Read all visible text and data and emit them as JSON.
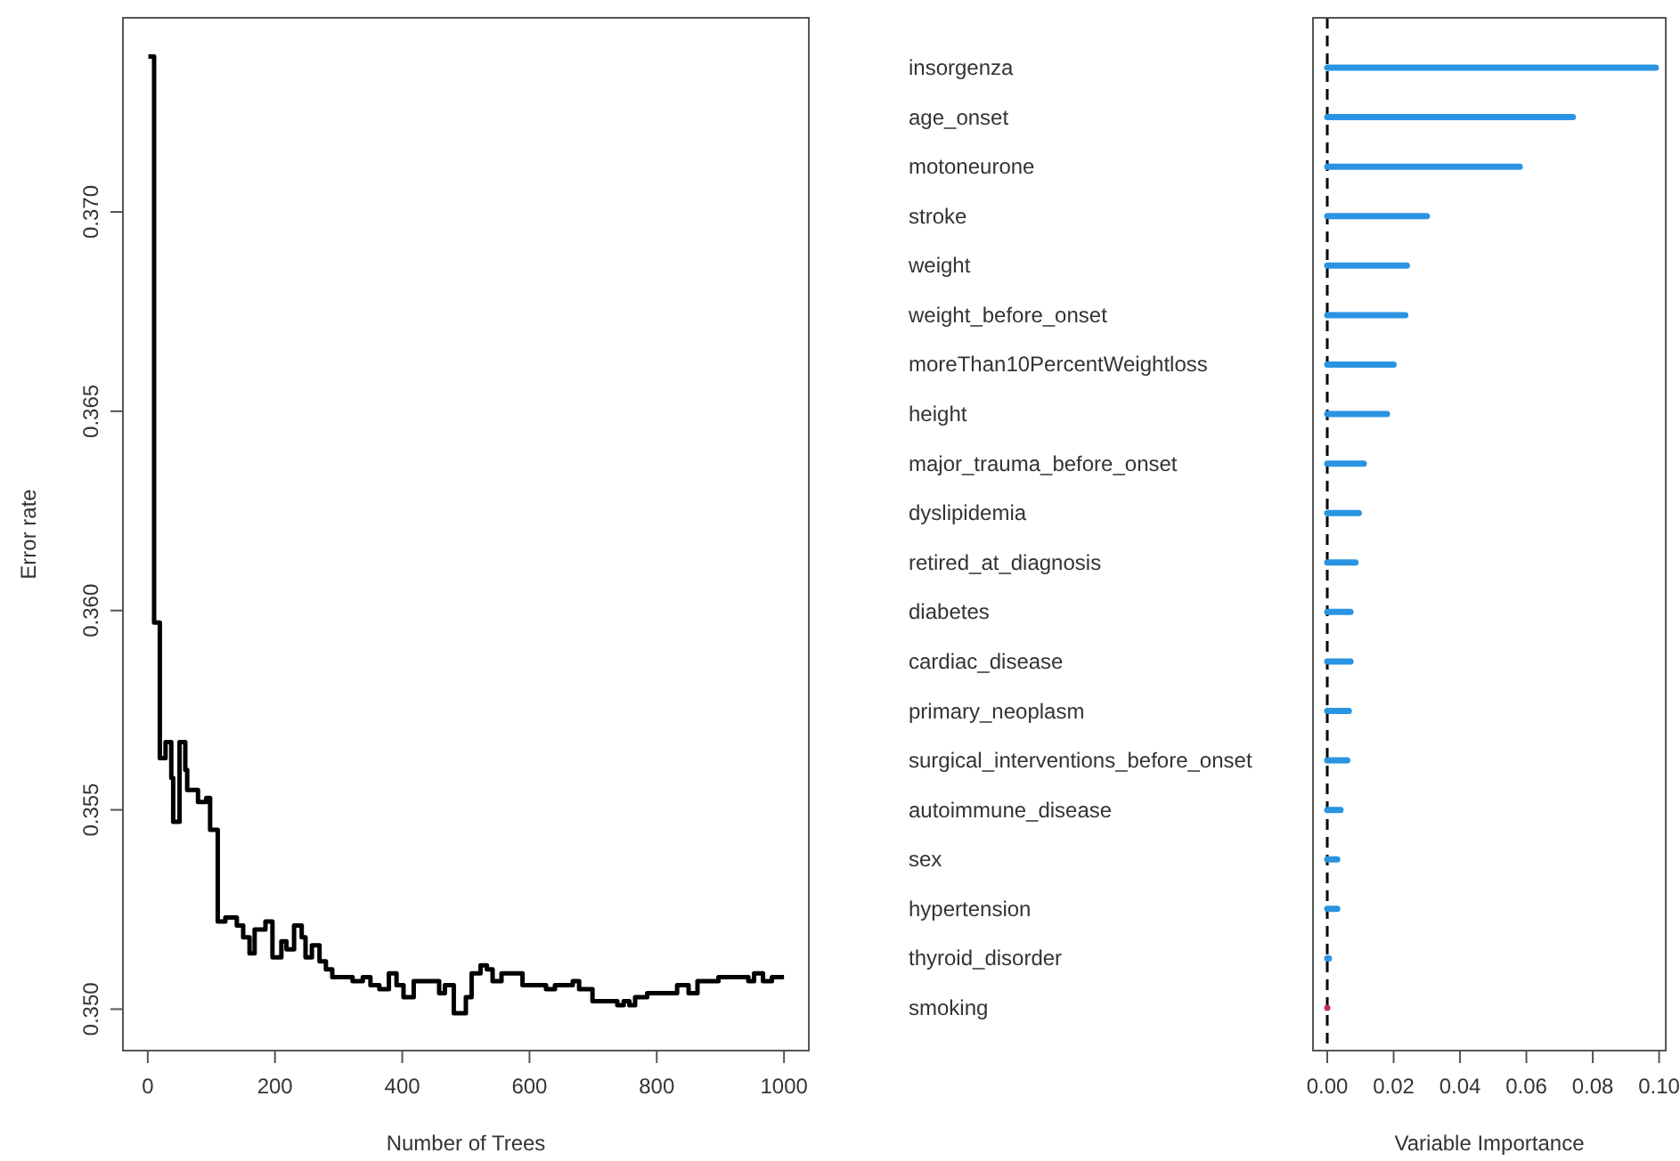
{
  "chart_data": [
    {
      "type": "step",
      "xlabel": "Number of Trees",
      "ylabel": "Error rate",
      "xlim": [
        -39,
        1039
      ],
      "ylim": [
        0.34896,
        0.37487
      ],
      "xticks": [
        0,
        200,
        400,
        600,
        800,
        1000
      ],
      "yticks": [
        {
          "value": 0.35,
          "label": "0.350"
        },
        {
          "value": 0.355,
          "label": "0.355"
        },
        {
          "value": 0.36,
          "label": "0.360"
        },
        {
          "value": 0.365,
          "label": "0.365"
        },
        {
          "value": 0.37,
          "label": "0.370"
        }
      ],
      "grid": false,
      "series": [
        {
          "color": "#000000",
          "x": [
            1,
            10,
            19,
            28,
            37,
            40,
            50,
            59,
            62,
            79,
            92,
            98,
            110,
            122,
            140,
            150,
            160,
            168,
            185,
            196,
            210,
            218,
            230,
            242,
            248,
            258,
            270,
            280,
            290,
            322,
            338,
            350,
            364,
            379,
            391,
            402,
            418,
            439,
            458,
            467,
            481,
            500,
            509,
            523,
            533,
            542,
            556,
            589,
            626,
            640,
            668,
            678,
            699,
            738,
            748,
            757,
            766,
            785,
            804,
            832,
            850,
            864,
            897,
            925,
            944,
            953,
            967,
            981,
            1000
          ],
          "values": [
            0.3739,
            0.3597,
            0.3563,
            0.3567,
            0.3558,
            0.3547,
            0.3567,
            0.356,
            0.3555,
            0.3552,
            0.3553,
            0.3545,
            0.3522,
            0.3523,
            0.3521,
            0.3518,
            0.3514,
            0.352,
            0.3522,
            0.3513,
            0.3517,
            0.3515,
            0.3521,
            0.3518,
            0.3513,
            0.3516,
            0.3512,
            0.351,
            0.3508,
            0.3507,
            0.3508,
            0.3506,
            0.3505,
            0.3509,
            0.3506,
            0.3503,
            0.3507,
            0.3507,
            0.3504,
            0.3506,
            0.3499,
            0.3503,
            0.3509,
            0.3511,
            0.351,
            0.3507,
            0.3509,
            0.3506,
            0.3505,
            0.3506,
            0.3507,
            0.3505,
            0.3502,
            0.3501,
            0.3502,
            0.3501,
            0.3503,
            0.3504,
            0.3504,
            0.3506,
            0.3504,
            0.3507,
            0.3508,
            0.3508,
            0.3507,
            0.3509,
            0.3507,
            0.3508,
            0.3508
          ]
        }
      ]
    },
    {
      "type": "bar",
      "orientation": "horizontal",
      "xlabel": "Variable Importance",
      "xlim": [
        -0.0043,
        0.102
      ],
      "xticks": [
        {
          "value": 0,
          "label": "0.00"
        },
        {
          "value": 0.02,
          "label": "0.02"
        },
        {
          "value": 0.04,
          "label": "0.04"
        },
        {
          "value": 0.06,
          "label": "0.06"
        },
        {
          "value": 0.08,
          "label": "0.08"
        },
        {
          "value": 0.1,
          "label": "0.10"
        }
      ],
      "grid": false,
      "categories": [
        "insorgenza",
        "age_onset",
        "motoneurone",
        "stroke",
        "weight",
        "weight_before_onset",
        "moreThan10PercentWeightloss",
        "height",
        "major_trauma_before_onset",
        "dyslipidemia",
        "retired_at_diagnosis",
        "diabetes",
        "cardiac_disease",
        "primary_neoplasm",
        "surgical_interventions_before_onset",
        "autoimmune_disease",
        "sex",
        "hypertension",
        "thyroid_disorder",
        "smoking"
      ],
      "values": [
        0.099,
        0.074,
        0.058,
        0.03,
        0.024,
        0.0235,
        0.02,
        0.018,
        0.011,
        0.0095,
        0.0085,
        0.007,
        0.007,
        0.0065,
        0.006,
        0.004,
        0.003,
        0.003,
        0.0005,
        0
      ],
      "colors": [
        "#2b94e2",
        "#2b94e2",
        "#2b94e2",
        "#2b94e2",
        "#2b94e2",
        "#2b94e2",
        "#2b94e2",
        "#2b94e2",
        "#2b94e2",
        "#2b94e2",
        "#2b94e2",
        "#2b94e2",
        "#2b94e2",
        "#2b94e2",
        "#2b94e2",
        "#2b94e2",
        "#2b94e2",
        "#2b94e2",
        "#2b94e2",
        "#c0304a"
      ],
      "ref_lines": [
        {
          "axis": "x",
          "value": 0,
          "color": "#000000",
          "line_style": "dashed"
        }
      ]
    }
  ]
}
